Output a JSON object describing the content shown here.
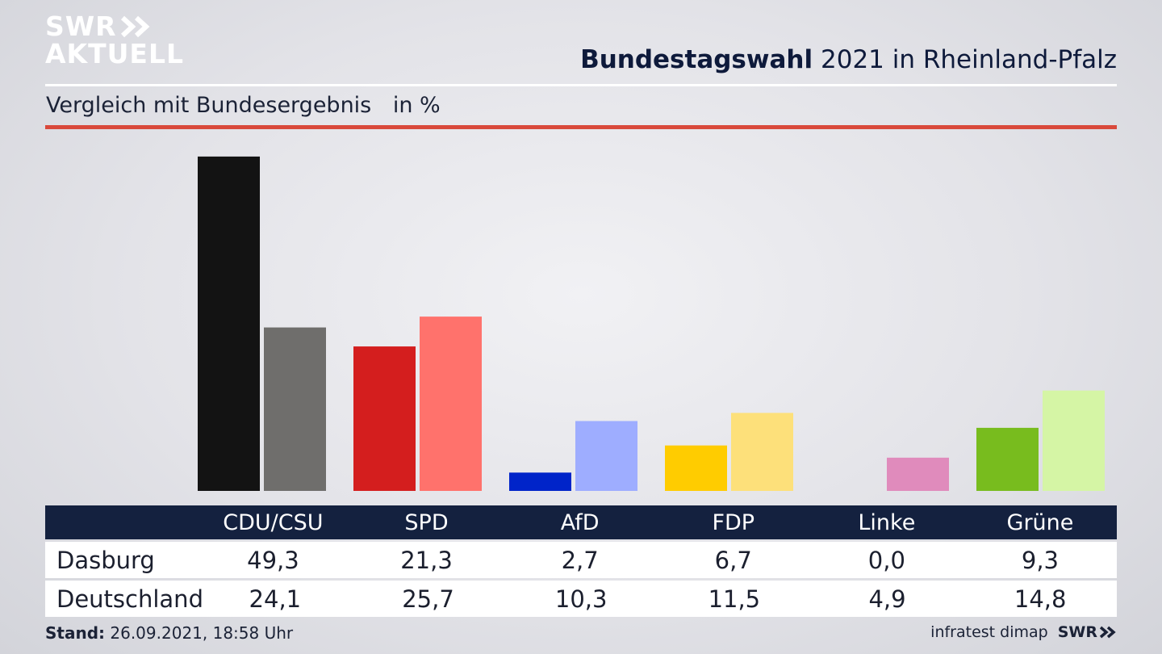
{
  "brand": {
    "line1": "SWR",
    "line2": "AKTUELL",
    "footer_logo": "SWR"
  },
  "header": {
    "title_bold": "Bundestagswahl",
    "title_rest": "2021 in Rheinland-Pfalz"
  },
  "subtitle": {
    "text": "Vergleich mit Bundesergebnis",
    "unit": "in %"
  },
  "footer": {
    "stand_label": "Stand:",
    "stand_value": "26.09.2021, 18:58 Uhr",
    "source": "infratest dimap"
  },
  "table": {
    "rows": [
      {
        "label": "Dasburg",
        "values": [
          "49,3",
          "21,3",
          "2,7",
          "6,7",
          "0,0",
          "9,3"
        ]
      },
      {
        "label": "Deutschland",
        "values": [
          "24,1",
          "25,7",
          "10,3",
          "11,5",
          "4,9",
          "14,8"
        ]
      }
    ]
  },
  "colors": {
    "title": "#0e1a3b",
    "accent_rule": "#d9493b",
    "table_header": "#14213f"
  },
  "chart_data": {
    "type": "bar",
    "categories": [
      "CDU/CSU",
      "SPD",
      "AfD",
      "FDP",
      "Linke",
      "Grüne"
    ],
    "series": [
      {
        "name": "Dasburg",
        "values": [
          49.3,
          21.3,
          2.7,
          6.7,
          0.0,
          9.3
        ],
        "colors": [
          "#131313",
          "#d41e1e",
          "#0024c9",
          "#ffcc00",
          "#b94f92",
          "#78bc1e"
        ]
      },
      {
        "name": "Deutschland",
        "values": [
          24.1,
          25.7,
          10.3,
          11.5,
          4.9,
          14.8
        ],
        "colors": [
          "#6f6e6c",
          "#ff726c",
          "#9eadff",
          "#fde07a",
          "#e08bbc",
          "#d5f5a5"
        ]
      }
    ],
    "ylim": [
      0,
      50
    ],
    "grid": false,
    "legend": "none"
  }
}
